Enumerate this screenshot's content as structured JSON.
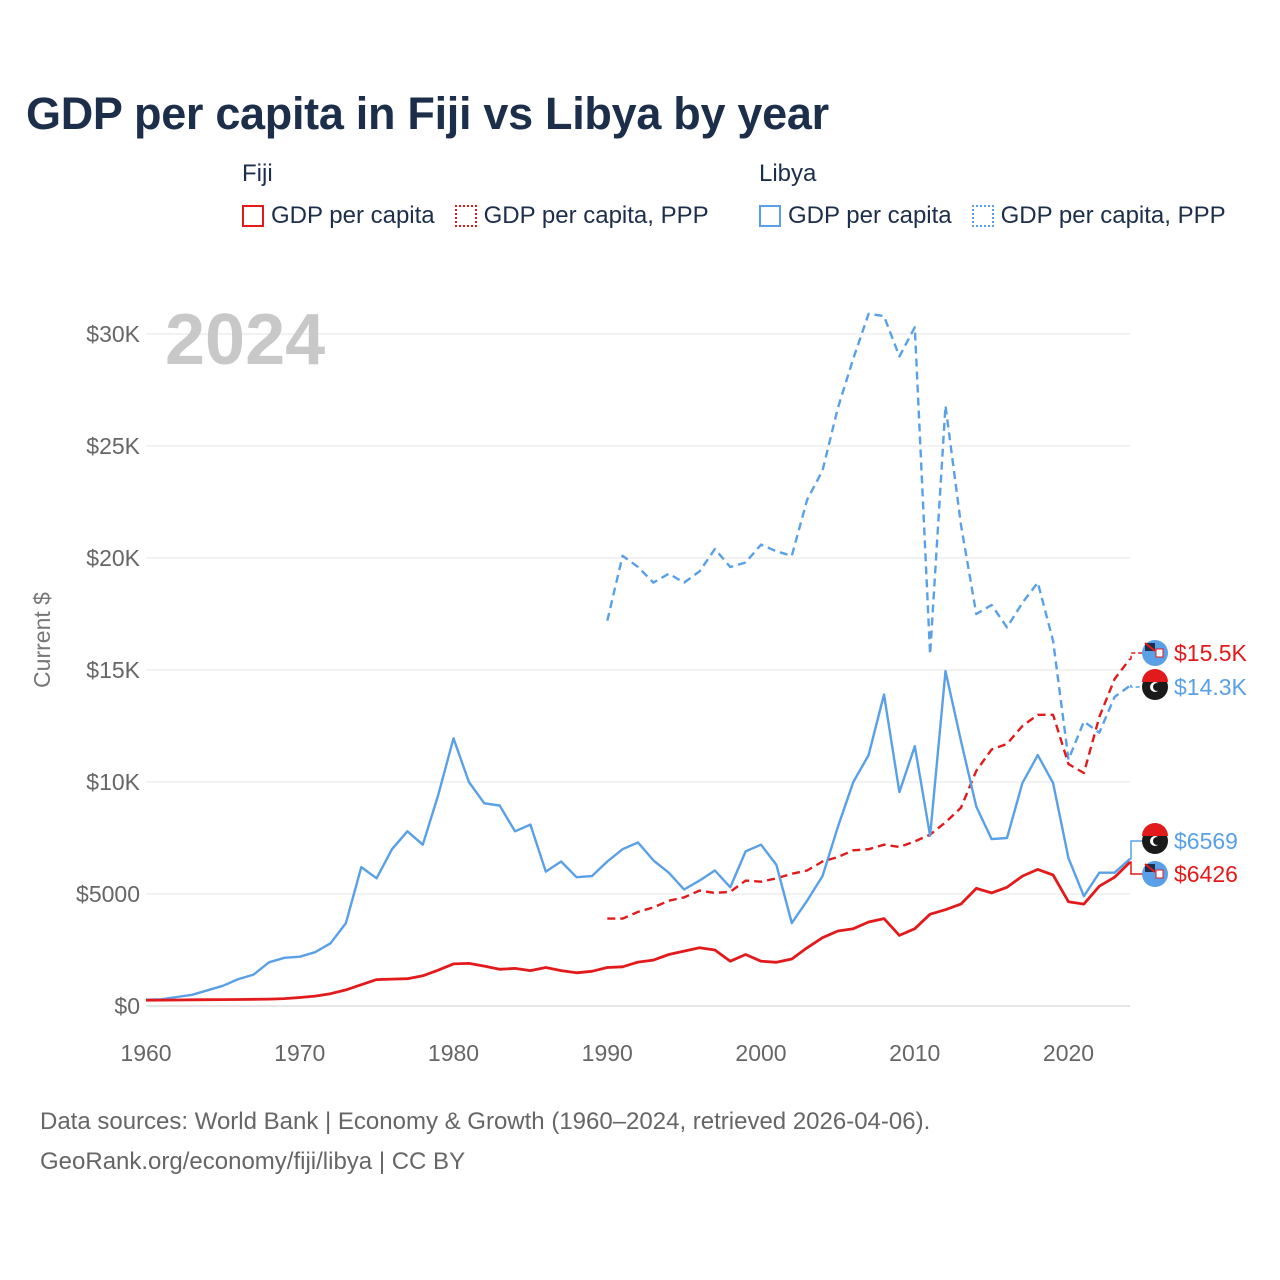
{
  "title": "GDP per capita in Fiji vs Libya by year",
  "legend": {
    "groups": [
      {
        "name": "Fiji",
        "items": [
          {
            "label": "GDP per capita",
            "color": "#e31a1c",
            "style": "solid"
          },
          {
            "label": "GDP per capita, PPP",
            "color": "#e31a1c",
            "style": "dotted"
          }
        ]
      },
      {
        "name": "Libya",
        "items": [
          {
            "label": "GDP per capita",
            "color": "#5aa0e6",
            "style": "solid"
          },
          {
            "label": "GDP per capita, PPP",
            "color": "#5aa0e6",
            "style": "dotted"
          }
        ]
      }
    ]
  },
  "year_watermark": "2024",
  "end_labels": [
    {
      "series": "Fiji GDP per capita, PPP",
      "text": "$15.5K",
      "color": "#e31a1c",
      "flag": "fiji"
    },
    {
      "series": "Libya GDP per capita, PPP",
      "text": "$14.3K",
      "color": "#5aa0e6",
      "flag": "libya"
    },
    {
      "series": "Libya GDP per capita",
      "text": "$6569",
      "color": "#5aa0e6",
      "flag": "libya"
    },
    {
      "series": "Fiji GDP per capita",
      "text": "$6426",
      "color": "#e31a1c",
      "flag": "fiji"
    }
  ],
  "sources": {
    "line1": "Data sources: World Bank | Economy & Growth (1960–2024, retrieved 2026-04-06).",
    "line2": "GeoRank.org/economy/fiji/libya | CC BY"
  },
  "chart_data": {
    "type": "line",
    "ylabel": "Current $",
    "xlabel": "",
    "xlim": [
      1960,
      2024
    ],
    "ylim": [
      0,
      30000
    ],
    "x_ticks": [
      1960,
      1970,
      1980,
      1990,
      2000,
      2010,
      2020
    ],
    "y_ticks": [
      {
        "value": 0,
        "label": "$0"
      },
      {
        "value": 5000,
        "label": "$5000"
      },
      {
        "value": 10000,
        "label": "$10K"
      },
      {
        "value": 15000,
        "label": "$15K"
      },
      {
        "value": 20000,
        "label": "$20K"
      },
      {
        "value": 25000,
        "label": "$25K"
      },
      {
        "value": 30000,
        "label": "$30K"
      }
    ],
    "grid": true,
    "series": [
      {
        "name": "Libya GDP per capita, PPP",
        "color": "#5aa0e6",
        "dashed": true,
        "start_year": 1990,
        "values": [
          17200,
          20100,
          19600,
          18900,
          19300,
          18900,
          19400,
          20400,
          19600,
          19800,
          20600,
          20300,
          20100,
          22600,
          23900,
          26700,
          28900,
          30900,
          30800,
          29000,
          30300,
          15700,
          26800,
          21500,
          17500,
          17900,
          16900,
          18000,
          18900,
          16300,
          11000,
          12700,
          12200,
          13800,
          14300
        ]
      },
      {
        "name": "Fiji GDP per capita, PPP",
        "color": "#e31a1c",
        "dashed": true,
        "start_year": 1990,
        "values": [
          3900,
          3900,
          4200,
          4400,
          4700,
          4850,
          5150,
          5050,
          5100,
          5600,
          5550,
          5700,
          5900,
          6050,
          6450,
          6650,
          6950,
          7000,
          7200,
          7100,
          7350,
          7650,
          8200,
          8850,
          10500,
          11450,
          11700,
          12500,
          13000,
          13000,
          10800,
          10400,
          12900,
          14600,
          15500
        ]
      },
      {
        "name": "Libya GDP per capita",
        "color": "#5aa0e6",
        "dashed": false,
        "start_year": 1960,
        "values": [
          280,
          300,
          400,
          500,
          700,
          900,
          1200,
          1400,
          1950,
          2150,
          2200,
          2400,
          2800,
          3700,
          6200,
          5700,
          7000,
          7800,
          7200,
          9400,
          11950,
          10000,
          9050,
          8950,
          7800,
          8100,
          6000,
          6450,
          5750,
          5800,
          6450,
          7000,
          7300,
          6500,
          5950,
          5200,
          5600,
          6050,
          5300,
          6900,
          7200,
          6300,
          3700,
          4700,
          5800,
          8000,
          10000,
          11200,
          13900,
          9550,
          11600,
          7600,
          14950,
          11850,
          8900,
          7450,
          7500,
          9950,
          11200,
          9950,
          6600,
          4900,
          5950,
          5950,
          6569
        ]
      },
      {
        "name": "Fiji GDP per capita",
        "color": "#e31a1c",
        "dashed": false,
        "start_year": 1960,
        "values": [
          260,
          265,
          270,
          275,
          280,
          285,
          290,
          300,
          310,
          330,
          380,
          440,
          550,
          720,
          950,
          1180,
          1200,
          1220,
          1350,
          1600,
          1880,
          1900,
          1780,
          1640,
          1680,
          1580,
          1720,
          1580,
          1480,
          1550,
          1720,
          1750,
          1960,
          2050,
          2300,
          2450,
          2600,
          2500,
          2000,
          2300,
          2000,
          1950,
          2100,
          2600,
          3050,
          3350,
          3450,
          3750,
          3900,
          3150,
          3450,
          4100,
          4300,
          4550,
          5250,
          5050,
          5300,
          5800,
          6100,
          5850,
          4650,
          4550,
          5350,
          5750,
          6426
        ]
      }
    ]
  }
}
